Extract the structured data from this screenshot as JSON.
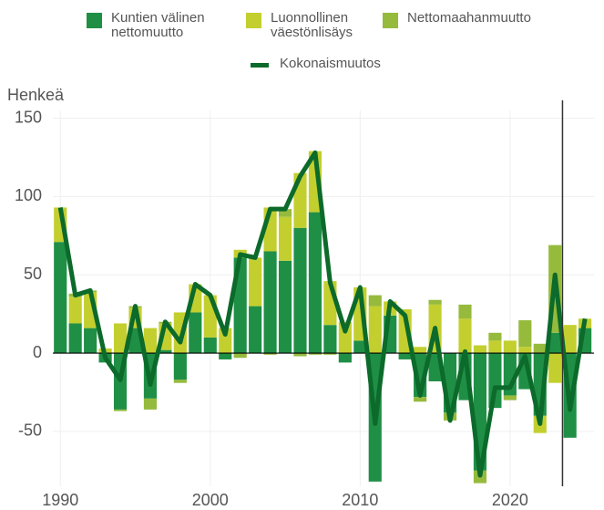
{
  "chart_data": {
    "type": "bar",
    "y_label": "Henkeä",
    "x": [
      1990,
      1991,
      1992,
      1993,
      1994,
      1995,
      1996,
      1997,
      1998,
      1999,
      2000,
      2001,
      2002,
      2003,
      2004,
      2005,
      2006,
      2007,
      2008,
      2009,
      2010,
      2011,
      2012,
      2013,
      2014,
      2015,
      2016,
      2017,
      2018,
      2019,
      2020,
      2021,
      2022,
      2023,
      2024,
      2025
    ],
    "series": [
      {
        "name": "Kuntien välinen\nnettomuutto",
        "color": "#1f8f46",
        "values": [
          71,
          19,
          16,
          -6,
          -36,
          16,
          -29,
          2,
          -17,
          26,
          10,
          -4,
          61,
          30,
          65,
          59,
          80,
          90,
          18,
          -6,
          8,
          -82,
          24,
          -4,
          -28,
          -18,
          -38,
          -30,
          -75,
          -35,
          -27,
          -23,
          -40,
          13,
          -54,
          16
        ]
      },
      {
        "name": "Luonnollinen\nväestönlisäys",
        "color": "#c3cf2e",
        "values": [
          22,
          17,
          23,
          3,
          19,
          13,
          16,
          17,
          26,
          18,
          27,
          16,
          5,
          31,
          28,
          28,
          35,
          39,
          28,
          20,
          34,
          30,
          9,
          28,
          4,
          31,
          0,
          22,
          5,
          8,
          8,
          4,
          -11,
          -19,
          18,
          6
        ]
      },
      {
        "name": "Nettomaahanmuutto",
        "color": "#96ba3c",
        "values": [
          0,
          2,
          1,
          0,
          -1,
          1,
          -7,
          1,
          -2,
          0,
          0,
          0,
          -3,
          0,
          -1,
          5,
          -2,
          -1,
          -1,
          0,
          0,
          7,
          0,
          0,
          -3,
          3,
          -5,
          9,
          -8,
          5,
          -3,
          17,
          6,
          56,
          0,
          0
        ]
      },
      {
        "name": "Kokonaismuutos",
        "color": "#0c6a2a",
        "line": true,
        "values": [
          93,
          37,
          40,
          -3,
          -17,
          30,
          -20,
          20,
          7,
          44,
          37,
          12,
          63,
          61,
          92,
          92,
          113,
          128,
          45,
          14,
          42,
          -45,
          33,
          24,
          -27,
          16,
          -43,
          1,
          -78,
          -22,
          -22,
          -2,
          -45,
          50,
          -36,
          22
        ]
      }
    ],
    "xlim": [
      1989.5,
      2025.6
    ],
    "xticks": [
      1990,
      2000,
      2010,
      2020
    ],
    "ylim": [
      -85,
      155
    ],
    "yticks": [
      -50,
      0,
      50,
      100,
      150
    ],
    "vline": 2023.5,
    "grid": true
  }
}
